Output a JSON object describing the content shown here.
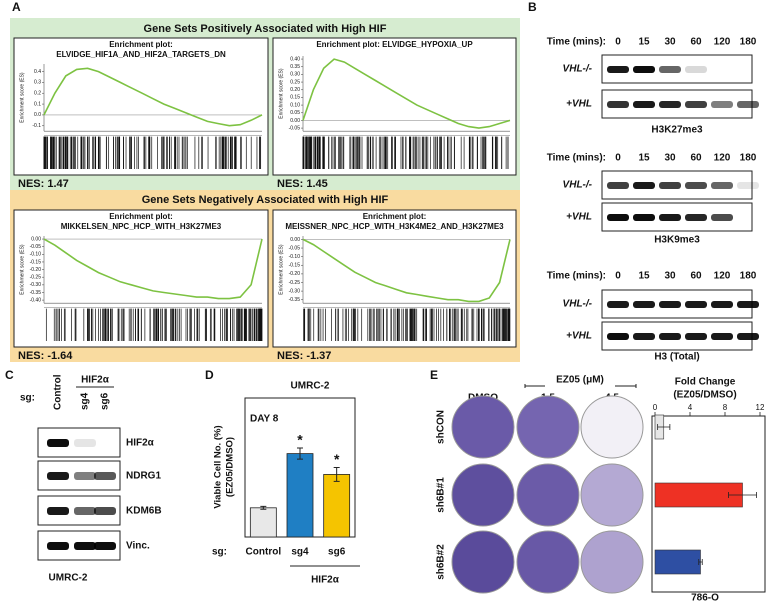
{
  "panel_labels": [
    "A",
    "B",
    "C",
    "D",
    "E"
  ],
  "gsea": {
    "positive_title": "Gene Sets Positively Associated with High HIF",
    "negative_title": "Gene Sets Negatively Associated with High HIF"
  },
  "chart_data": [
    {
      "type": "line",
      "title": [
        "Enrichment plot:",
        "ELVIDGE_HIF1A_AND_HIF2A_TARGETS_DN"
      ],
      "y_label": "Enrichment score (ES)",
      "annotation": "NES: 1.47",
      "color": "#7dc242",
      "x": [
        0,
        5,
        10,
        15,
        20,
        25,
        30,
        35,
        40,
        45,
        50,
        55,
        60,
        65,
        70,
        75,
        80,
        85,
        90,
        95,
        100
      ],
      "xlim": [
        0,
        100
      ],
      "values": [
        0,
        0.2,
        0.36,
        0.42,
        0.43,
        0.4,
        0.35,
        0.3,
        0.25,
        0.2,
        0.15,
        0.1,
        0.06,
        0.02,
        -0.02,
        -0.06,
        -0.08,
        -0.1,
        -0.09,
        -0.05,
        0.0
      ],
      "ylim": [
        -0.15,
        0.47
      ],
      "yticks": [
        0.4,
        0.3,
        0.2,
        0.1,
        {
          "value": 0,
          "label": "0.0"
        },
        -0.1
      ]
    },
    {
      "type": "line",
      "title": [
        "Enrichment plot: ELVIDGE_HYPOXIA_UP"
      ],
      "y_label": "Enrichment score (ES)",
      "annotation": "NES: 1.45",
      "color": "#7dc242",
      "x": [
        0,
        5,
        10,
        15,
        20,
        25,
        30,
        35,
        40,
        45,
        50,
        55,
        60,
        65,
        70,
        75,
        80,
        85,
        90,
        95,
        100
      ],
      "xlim": [
        0,
        100
      ],
      "values": [
        0,
        0.2,
        0.34,
        0.4,
        0.38,
        0.34,
        0.3,
        0.26,
        0.22,
        0.18,
        0.14,
        0.1,
        0.07,
        0.04,
        0.01,
        -0.02,
        -0.04,
        -0.05,
        -0.04,
        -0.02,
        0.0
      ],
      "ylim": [
        -0.07,
        0.42
      ],
      "yticks": [
        {
          "value": 0.4,
          "label": "0.40"
        },
        0.35,
        {
          "value": 0.3,
          "label": "0.30"
        },
        0.25,
        {
          "value": 0.2,
          "label": "0.20"
        },
        0.15,
        {
          "value": 0.1,
          "label": "0.10"
        },
        0.05,
        {
          "value": 0,
          "label": "0.00"
        },
        -0.05
      ]
    },
    {
      "type": "line",
      "title": [
        "Enrichment plot:",
        "MIKKELSEN_NPC_HCP_WITH_H3K27ME3"
      ],
      "y_label": "Enrichment score (ES)",
      "annotation": "NES: -1.64",
      "color": "#7dc242",
      "x": [
        0,
        5,
        10,
        15,
        20,
        25,
        30,
        35,
        40,
        45,
        50,
        55,
        60,
        65,
        70,
        75,
        80,
        85,
        90,
        95,
        100
      ],
      "xlim": [
        0,
        100
      ],
      "values": [
        0,
        -0.04,
        -0.09,
        -0.14,
        -0.18,
        -0.22,
        -0.25,
        -0.28,
        -0.3,
        -0.32,
        -0.34,
        -0.35,
        -0.36,
        -0.37,
        -0.38,
        -0.38,
        -0.39,
        -0.39,
        -0.38,
        -0.3,
        0.0
      ],
      "ylim": [
        -0.42,
        0.02
      ],
      "yticks": [
        {
          "value": 0,
          "label": "0.00"
        },
        -0.05,
        {
          "value": -0.1,
          "label": "-0.10"
        },
        -0.15,
        {
          "value": -0.2,
          "label": "-0.20"
        },
        -0.25,
        {
          "value": -0.3,
          "label": "-0.30"
        },
        -0.35,
        {
          "value": -0.4,
          "label": "-0.40"
        }
      ]
    },
    {
      "type": "line",
      "title": [
        "Enrichment plot:",
        "MEISSNER_NPC_HCP_WITH_H3K4ME2_AND_H3K27ME3"
      ],
      "y_label": "Enrichment score (ES)",
      "annotation": "NES: -1.37",
      "color": "#7dc242",
      "x": [
        0,
        5,
        10,
        15,
        20,
        25,
        30,
        35,
        40,
        45,
        50,
        55,
        60,
        65,
        70,
        75,
        80,
        85,
        90,
        95,
        100
      ],
      "xlim": [
        0,
        100
      ],
      "values": [
        0,
        -0.03,
        -0.07,
        -0.11,
        -0.15,
        -0.19,
        -0.22,
        -0.25,
        -0.27,
        -0.29,
        -0.31,
        -0.32,
        -0.33,
        -0.34,
        -0.35,
        -0.35,
        -0.36,
        -0.36,
        -0.34,
        -0.25,
        0.0
      ],
      "ylim": [
        -0.37,
        0.02
      ],
      "yticks": [
        {
          "value": 0,
          "label": "0.00"
        },
        -0.05,
        {
          "value": -0.1,
          "label": "-0.10"
        },
        -0.15,
        {
          "value": -0.2,
          "label": "-0.20"
        },
        -0.25,
        {
          "value": -0.3,
          "label": "-0.30"
        },
        -0.35
      ]
    },
    {
      "type": "bar",
      "title": "UMRC-2",
      "annotation": "DAY 8",
      "y_label": [
        "Viable Cell No. (%)",
        "(EZ05/DMSO)"
      ],
      "x_prefix": "sg:",
      "group_label": "HIF2α",
      "categories": [
        "Control",
        "sg4",
        "sg6"
      ],
      "values": [
        21,
        60,
        45
      ],
      "errors": [
        1,
        4,
        5
      ],
      "significance": [
        null,
        "*",
        "*"
      ],
      "colors": [
        "#e8e8e8",
        "#1f7fc4",
        "#f5c400"
      ],
      "ylim": [
        0,
        100
      ]
    },
    {
      "type": "hbar",
      "title": [
        "Fold Change",
        "(EZ05/DMSO)"
      ],
      "footer": "786-O",
      "values": [
        1.0,
        10.0,
        5.2
      ],
      "errors": [
        0.7,
        1.6,
        0.2
      ],
      "colors": [
        "#e6e6e6",
        "#ee3124",
        "#2e4fa3"
      ],
      "xlim": [
        0,
        12
      ],
      "xticks": [
        0,
        4,
        8,
        12
      ]
    }
  ],
  "blots_b": {
    "time_label": "Time (mins):",
    "times": [
      "0",
      "15",
      "30",
      "60",
      "120",
      "180"
    ],
    "rows": [
      "VHL-/-",
      "+VHL"
    ],
    "marks": [
      "H3K27me3",
      "H3K9me3",
      "H3 (Total)"
    ]
  },
  "blots_c": {
    "sg_label": "sg:",
    "group": "HIF2α",
    "lanes": [
      "Control",
      "sg4",
      "sg6"
    ],
    "proteins": [
      "HIF2α",
      "NDRG1",
      "KDM6B",
      "Vinc."
    ],
    "cell_line": "UMRC-2"
  },
  "plates_e": {
    "treatment": "EZ05 (μM)",
    "columns": [
      "DMSO",
      "1.5",
      "4.5"
    ],
    "rows": [
      "shCON",
      "sh6B#1",
      "sh6B#2"
    ]
  }
}
